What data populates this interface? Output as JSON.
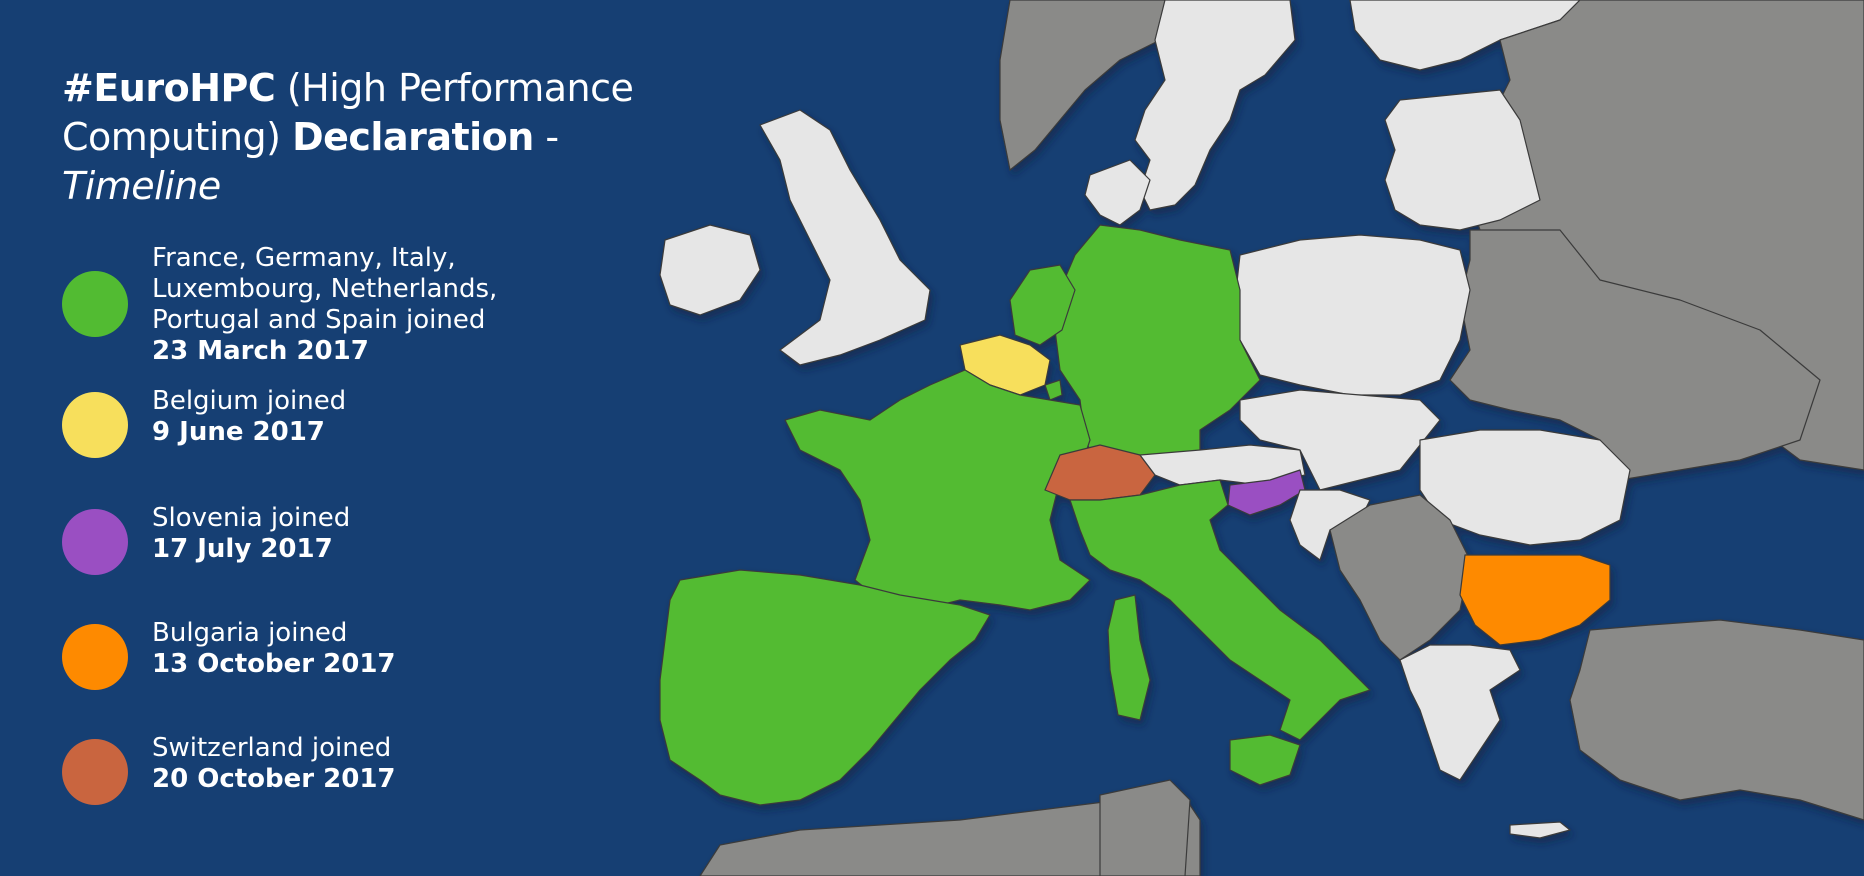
{
  "title": {
    "hashtag": "#EuroHPC",
    "part1": " (High Performance",
    "part2": "Computing) ",
    "bold2": "Declaration",
    "dash": " -",
    "italic": "Timeline"
  },
  "colors": {
    "sea": "#163f73",
    "non_eu_land": "#8a8a88",
    "eu_land": "#e6e6e6",
    "joined_march": "#52bb32",
    "joined_june": "#f7df5c",
    "joined_july": "#9a4fc2",
    "joined_october13": "#fe8a00",
    "joined_october20": "#c9653f"
  },
  "legend": [
    {
      "label_lines": [
        "France, Germany, Italy,",
        "Luxembourg, Netherlands,",
        "Portugal and Spain joined"
      ],
      "date": "23 March 2017",
      "color": "#52bb32"
    },
    {
      "label_lines": [
        "Belgium joined"
      ],
      "date": "9 June 2017",
      "color": "#f7df5c"
    },
    {
      "label_lines": [
        "Slovenia joined"
      ],
      "date": "17 July 2017",
      "color": "#9a4fc2"
    },
    {
      "label_lines": [
        "Bulgaria joined"
      ],
      "date": "13 October 2017",
      "color": "#fe8a00"
    },
    {
      "label_lines": [
        "Switzerland joined"
      ],
      "date": "20 October 2017",
      "color": "#c9653f"
    }
  ]
}
